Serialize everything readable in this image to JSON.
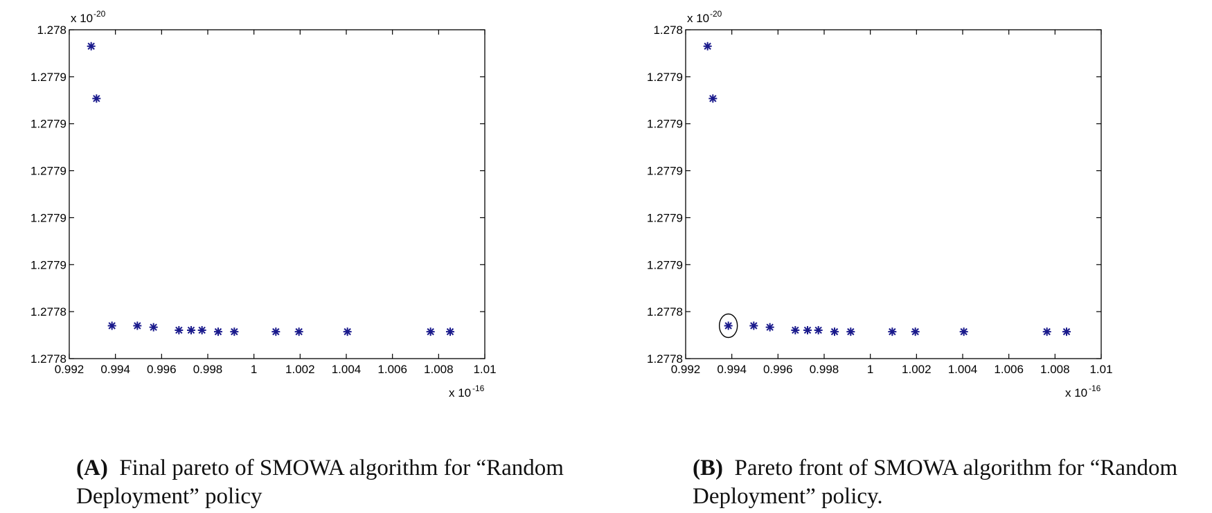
{
  "chart_data": [
    {
      "type": "scatter",
      "id": "A",
      "x_exponent": "-16",
      "y_exponent": "-20",
      "xlim": [
        0.992,
        1.01
      ],
      "ylim": [
        1.27778,
        1.278
      ],
      "x_ticks": [
        "0.992",
        "0.994",
        "0.996",
        "0.998",
        "1",
        "1.002",
        "1.004",
        "1.006",
        "1.008",
        "1.01"
      ],
      "y_ticks": [
        "1.2778",
        "1.2778",
        "1.2779",
        "1.2779",
        "1.2779",
        "1.2779",
        "1.2779",
        "1.278"
      ],
      "x": [
        0.99295,
        0.99318,
        0.99385,
        0.99495,
        0.99565,
        0.99675,
        0.99728,
        0.99775,
        0.99845,
        0.99915,
        1.00095,
        1.00195,
        1.00405,
        1.00765,
        1.0085
      ],
      "y": [
        1.277989,
        1.277954,
        1.277802,
        1.277802,
        1.277801,
        1.277799,
        1.277799,
        1.277799,
        1.277798,
        1.277798,
        1.277798,
        1.277798,
        1.277798,
        1.277798,
        1.277798
      ],
      "highlight_index": null,
      "caption_label": "(A)",
      "caption_text": "Final pareto of  SMOWA algorithm for “Random Deployment” policy"
    },
    {
      "type": "scatter",
      "id": "B",
      "x_exponent": "-16",
      "y_exponent": "-20",
      "xlim": [
        0.992,
        1.01
      ],
      "ylim": [
        1.27778,
        1.278
      ],
      "x_ticks": [
        "0.992",
        "0.994",
        "0.996",
        "0.998",
        "1",
        "1.002",
        "1.004",
        "1.006",
        "1.008",
        "1.01"
      ],
      "y_ticks": [
        "1.2778",
        "1.2778",
        "1.2779",
        "1.2779",
        "1.2779",
        "1.2779",
        "1.2779",
        "1.278"
      ],
      "x": [
        0.99295,
        0.99318,
        0.99385,
        0.99495,
        0.99565,
        0.99675,
        0.99728,
        0.99775,
        0.99845,
        0.99915,
        1.00095,
        1.00195,
        1.00405,
        1.00765,
        1.0085
      ],
      "y": [
        1.277989,
        1.277954,
        1.277802,
        1.277802,
        1.277801,
        1.277799,
        1.277799,
        1.277799,
        1.277798,
        1.277798,
        1.277798,
        1.277798,
        1.277798,
        1.277798,
        1.277798
      ],
      "highlight_index": 2,
      "caption_label": "(B)",
      "caption_text": "Pareto front of  SMOWA algorithm for “Random Deployment” policy."
    }
  ]
}
